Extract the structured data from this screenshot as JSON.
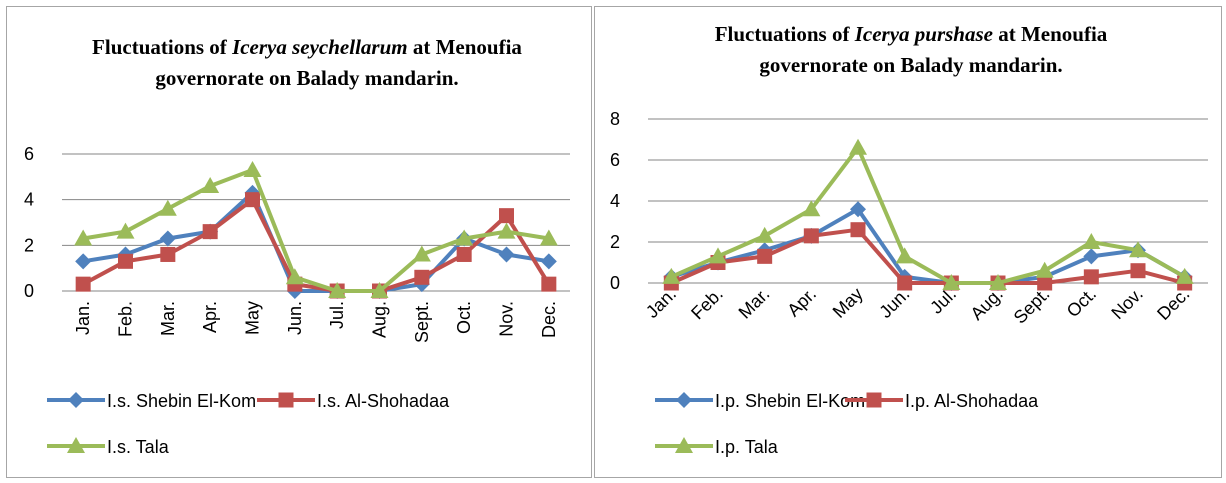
{
  "chart_data": [
    {
      "type": "line",
      "title": [
        "Fluctuations of ",
        "Icerya seychellarum",
        " at Menoufia governorate on Balady mandarin."
      ],
      "categories": [
        "Jan.",
        "Feb.",
        "Mar.",
        "Apr.",
        "May",
        "Jun.",
        "Jul.",
        "Aug.",
        "Sept.",
        "Oct.",
        "Nov.",
        "Dec."
      ],
      "series": [
        {
          "name": "I.s. Shebin El-Kom",
          "color": "#4f81bd",
          "marker": "diamond",
          "values": [
            1.3,
            1.6,
            2.3,
            2.6,
            4.3,
            0,
            0,
            0,
            0.3,
            2.3,
            1.6,
            1.3
          ]
        },
        {
          "name": "I.s. Al-Shohadaa",
          "color": "#c0504d",
          "marker": "square",
          "values": [
            0.3,
            1.3,
            1.6,
            2.6,
            4.0,
            0.3,
            0,
            0,
            0.6,
            1.6,
            3.3,
            0.3
          ]
        },
        {
          "name": "I.s. Tala",
          "color": "#9bbb59",
          "marker": "triangle",
          "values": [
            2.3,
            2.6,
            3.6,
            4.6,
            5.3,
            0.6,
            0,
            0,
            1.6,
            2.3,
            2.6,
            2.3
          ]
        }
      ],
      "ylim": [
        0,
        6
      ],
      "yticks": [
        0,
        2,
        4,
        6
      ],
      "grid": true,
      "legend": "bottom"
    },
    {
      "type": "line",
      "title": [
        "Fluctuations of ",
        "Icerya purshase",
        " at Menoufia governorate on Balady mandarin."
      ],
      "categories": [
        "Jan.",
        "Feb.",
        "Mar.",
        "Apr.",
        "May",
        "Jun.",
        "Jul.",
        "Aug.",
        "Sept.",
        "Oct.",
        "Nov.",
        "Dec."
      ],
      "series": [
        {
          "name": "I.p. Shebin El-Kom",
          "color": "#4f81bd",
          "marker": "diamond",
          "values": [
            0.3,
            1.0,
            1.6,
            2.3,
            3.6,
            0.3,
            0,
            0,
            0.3,
            1.3,
            1.6,
            0.3
          ]
        },
        {
          "name": "I.p. Al-Shohadaa",
          "color": "#c0504d",
          "marker": "square",
          "values": [
            0,
            1.0,
            1.3,
            2.3,
            2.6,
            0,
            0,
            0,
            0,
            0.3,
            0.6,
            0
          ]
        },
        {
          "name": "I.p. Tala",
          "color": "#9bbb59",
          "marker": "triangle",
          "values": [
            0.3,
            1.3,
            2.3,
            3.6,
            6.6,
            1.3,
            0,
            0,
            0.6,
            2.0,
            1.6,
            0.3
          ]
        }
      ],
      "ylim": [
        0,
        8
      ],
      "yticks": [
        0,
        2,
        4,
        6,
        8
      ],
      "grid": true,
      "legend": "bottom"
    }
  ]
}
